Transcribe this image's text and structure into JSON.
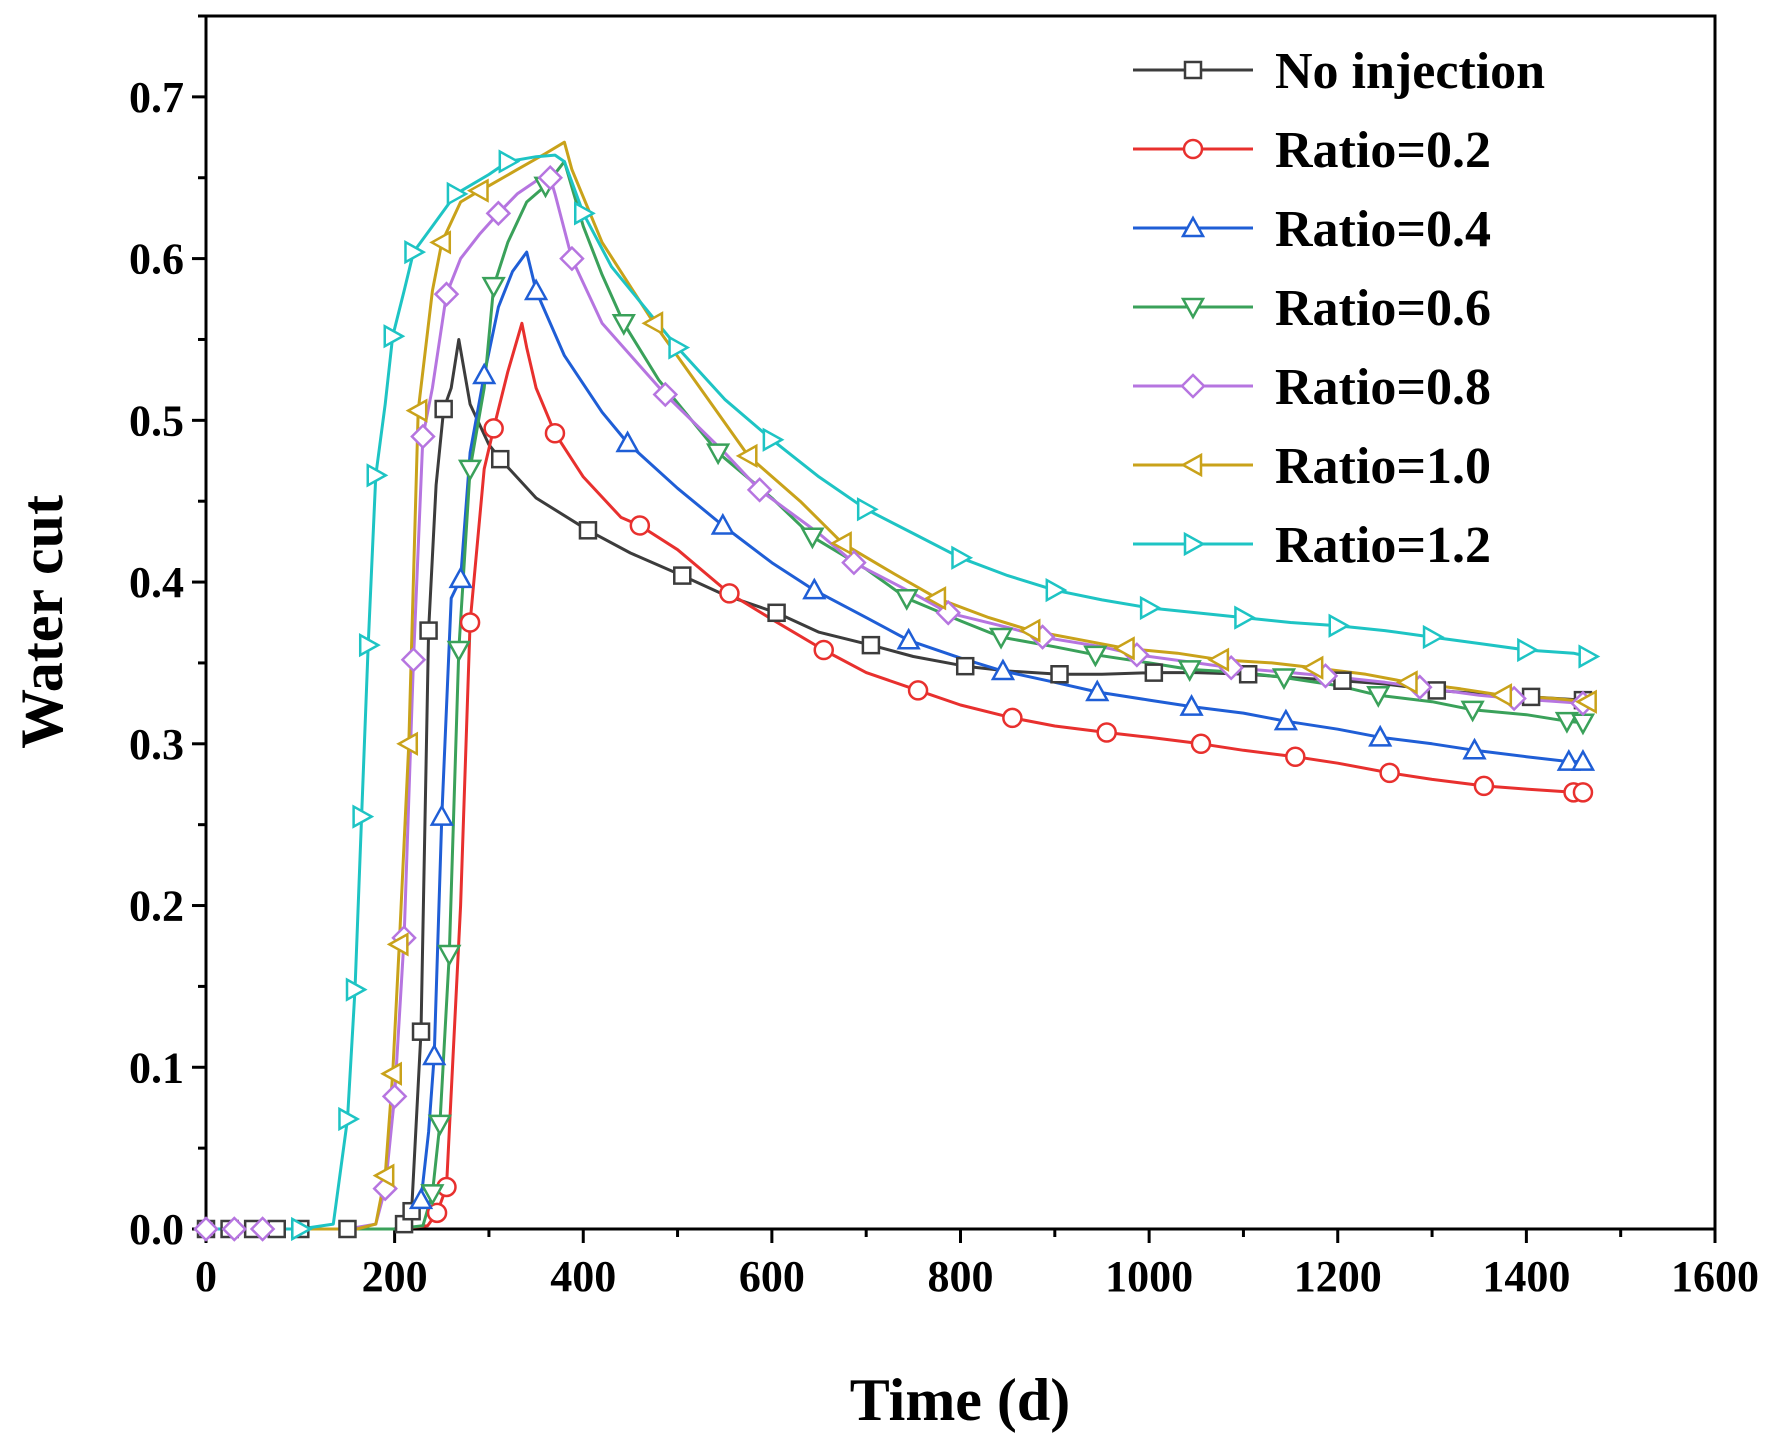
{
  "chart_data": {
    "type": "line",
    "title": "",
    "xlabel": "Time (d)",
    "ylabel": "Water cut",
    "xlim": [
      0,
      1600
    ],
    "ylim": [
      0,
      0.75
    ],
    "xticks": [
      0,
      200,
      400,
      600,
      800,
      1000,
      1200,
      1400,
      1600
    ],
    "yticks": [
      0.0,
      0.1,
      0.2,
      0.3,
      0.4,
      0.5,
      0.6,
      0.7
    ],
    "xtick_labels": [
      "0",
      "200",
      "400",
      "600",
      "800",
      "1000",
      "1200",
      "1400",
      "1600"
    ],
    "ytick_labels": [
      "0.0",
      "0.1",
      "0.2",
      "0.3",
      "0.4",
      "0.5",
      "0.6",
      "0.7"
    ],
    "legend_position": "top-right",
    "grid": false,
    "series": [
      {
        "name": "No injection",
        "color": "#3c3c3c",
        "marker": "square",
        "x": [
          0,
          25,
          50,
          75,
          100,
          150,
          200,
          210,
          218,
          228,
          236,
          244,
          252,
          260,
          268,
          280,
          300,
          312,
          350,
          405,
          450,
          505,
          550,
          605,
          650,
          705,
          750,
          805,
          850,
          905,
          950,
          1005,
          1050,
          1105,
          1150,
          1205,
          1250,
          1305,
          1350,
          1405,
          1460
        ],
        "y": [
          0,
          0,
          0,
          0,
          0,
          0,
          0,
          0.003,
          0.011,
          0.122,
          0.37,
          0.46,
          0.507,
          0.52,
          0.55,
          0.51,
          0.485,
          0.476,
          0.452,
          0.432,
          0.418,
          0.404,
          0.392,
          0.381,
          0.369,
          0.361,
          0.354,
          0.348,
          0.345,
          0.343,
          0.343,
          0.344,
          0.344,
          0.343,
          0.341,
          0.339,
          0.337,
          0.333,
          0.331,
          0.329,
          0.327
        ],
        "markers": [
          0,
          25,
          50,
          75,
          100,
          150,
          210,
          218,
          228,
          236,
          252,
          312,
          405,
          505,
          605,
          705,
          805,
          905,
          1005,
          1105,
          1205,
          1305,
          1405,
          1460
        ]
      },
      {
        "name": "Ratio=0.2",
        "color": "#e8302e",
        "marker": "circle",
        "x": [
          0,
          100,
          200,
          235,
          245,
          255,
          270,
          280,
          295,
          305,
          320,
          335,
          340,
          350,
          370,
          400,
          440,
          460,
          500,
          555,
          600,
          655,
          700,
          755,
          800,
          855,
          900,
          955,
          1000,
          1055,
          1100,
          1155,
          1200,
          1255,
          1300,
          1355,
          1400,
          1450,
          1460
        ],
        "y": [
          0,
          0,
          0,
          0.002,
          0.01,
          0.026,
          0.2,
          0.375,
          0.47,
          0.495,
          0.53,
          0.56,
          0.545,
          0.52,
          0.492,
          0.465,
          0.44,
          0.435,
          0.42,
          0.393,
          0.377,
          0.358,
          0.344,
          0.333,
          0.324,
          0.316,
          0.311,
          0.307,
          0.304,
          0.3,
          0.296,
          0.292,
          0.288,
          0.282,
          0.278,
          0.274,
          0.272,
          0.27,
          0.27
        ],
        "markers": [
          245,
          255,
          280,
          305,
          370,
          460,
          555,
          655,
          755,
          855,
          955,
          1055,
          1155,
          1255,
          1355,
          1450,
          1460
        ]
      },
      {
        "name": "Ratio=0.4",
        "color": "#1f5ed6",
        "marker": "triangle-up",
        "x": [
          0,
          100,
          200,
          215,
          228,
          236,
          242,
          250,
          260,
          270,
          280,
          295,
          310,
          325,
          340,
          350,
          380,
          420,
          447,
          500,
          548,
          600,
          645,
          700,
          745,
          800,
          845,
          900,
          945,
          1000,
          1045,
          1100,
          1145,
          1200,
          1245,
          1300,
          1345,
          1400,
          1445,
          1460
        ],
        "y": [
          0,
          0,
          0,
          0.003,
          0.018,
          0.06,
          0.107,
          0.255,
          0.39,
          0.402,
          0.48,
          0.528,
          0.57,
          0.592,
          0.604,
          0.58,
          0.54,
          0.505,
          0.486,
          0.458,
          0.435,
          0.412,
          0.395,
          0.378,
          0.364,
          0.353,
          0.345,
          0.338,
          0.332,
          0.327,
          0.323,
          0.319,
          0.314,
          0.309,
          0.304,
          0.3,
          0.296,
          0.292,
          0.289,
          0.289
        ],
        "markers": [
          228,
          242,
          250,
          270,
          295,
          350,
          447,
          548,
          645,
          745,
          845,
          945,
          1045,
          1145,
          1245,
          1345,
          1445,
          1460
        ]
      },
      {
        "name": "Ratio=0.6",
        "color": "#3aa15a",
        "marker": "triangle-down",
        "x": [
          0,
          100,
          200,
          230,
          240,
          248,
          258,
          268,
          280,
          295,
          305,
          320,
          340,
          360,
          380,
          400,
          420,
          443,
          480,
          543,
          600,
          643,
          700,
          743,
          800,
          843,
          900,
          943,
          1000,
          1043,
          1100,
          1143,
          1200,
          1243,
          1300,
          1343,
          1400,
          1443,
          1460
        ],
        "y": [
          0,
          0,
          0,
          0.002,
          0.022,
          0.065,
          0.17,
          0.358,
          0.47,
          0.52,
          0.583,
          0.61,
          0.635,
          0.645,
          0.66,
          0.62,
          0.59,
          0.56,
          0.525,
          0.48,
          0.452,
          0.428,
          0.408,
          0.39,
          0.376,
          0.366,
          0.36,
          0.355,
          0.35,
          0.346,
          0.344,
          0.341,
          0.336,
          0.33,
          0.326,
          0.321,
          0.318,
          0.314,
          0.313
        ],
        "markers": [
          240,
          248,
          258,
          268,
          280,
          305,
          360,
          443,
          543,
          643,
          743,
          843,
          943,
          1043,
          1143,
          1243,
          1343,
          1443,
          1460
        ]
      },
      {
        "name": "Ratio=0.8",
        "color": "#b675e0",
        "marker": "diamond",
        "x": [
          0,
          30,
          60,
          100,
          150,
          180,
          190,
          200,
          210,
          220,
          230,
          240,
          255,
          270,
          290,
          310,
          330,
          350,
          365,
          370,
          388,
          420,
          487,
          550,
          587,
          650,
          687,
          750,
          787,
          850,
          887,
          950,
          987,
          1050,
          1087,
          1150,
          1187,
          1250,
          1287,
          1350,
          1387,
          1460
        ],
        "y": [
          0,
          0,
          0,
          0,
          0,
          0.003,
          0.025,
          0.082,
          0.18,
          0.352,
          0.49,
          0.52,
          0.578,
          0.6,
          0.615,
          0.628,
          0.64,
          0.648,
          0.65,
          0.64,
          0.6,
          0.56,
          0.516,
          0.48,
          0.457,
          0.43,
          0.412,
          0.393,
          0.381,
          0.372,
          0.366,
          0.36,
          0.355,
          0.35,
          0.347,
          0.344,
          0.342,
          0.338,
          0.335,
          0.33,
          0.328,
          0.325
        ],
        "markers": [
          0,
          30,
          60,
          190,
          200,
          210,
          220,
          230,
          255,
          310,
          365,
          388,
          487,
          587,
          687,
          787,
          887,
          987,
          1087,
          1187,
          1287,
          1387,
          1460
        ]
      },
      {
        "name": "Ratio=1.0",
        "color": "#c9a21a",
        "marker": "triangle-left",
        "x": [
          0,
          100,
          160,
          180,
          190,
          198,
          205,
          215,
          225,
          240,
          250,
          270,
          290,
          300,
          330,
          360,
          380,
          388,
          420,
          475,
          530,
          575,
          630,
          675,
          730,
          775,
          830,
          875,
          930,
          975,
          1030,
          1075,
          1130,
          1175,
          1230,
          1275,
          1330,
          1375,
          1430,
          1465
        ],
        "y": [
          0,
          0,
          0,
          0.003,
          0.033,
          0.096,
          0.176,
          0.3,
          0.506,
          0.58,
          0.61,
          0.635,
          0.642,
          0.645,
          0.655,
          0.665,
          0.672,
          0.655,
          0.61,
          0.56,
          0.515,
          0.478,
          0.45,
          0.424,
          0.405,
          0.39,
          0.378,
          0.37,
          0.364,
          0.359,
          0.356,
          0.352,
          0.35,
          0.347,
          0.343,
          0.338,
          0.334,
          0.33,
          0.328,
          0.326
        ],
        "markers": [
          190,
          198,
          205,
          215,
          225,
          250,
          290,
          475,
          575,
          675,
          775,
          875,
          975,
          1075,
          1175,
          1275,
          1375,
          1465
        ]
      },
      {
        "name": "Ratio=1.2",
        "color": "#1ec4c4",
        "marker": "triangle-right",
        "x": [
          0,
          50,
          100,
          135,
          150,
          158,
          165,
          172,
          180,
          190,
          198,
          210,
          220,
          240,
          265,
          300,
          320,
          340,
          350,
          370,
          380,
          400,
          430,
          500,
          550,
          600,
          650,
          700,
          750,
          800,
          850,
          900,
          950,
          1000,
          1050,
          1100,
          1150,
          1200,
          1250,
          1300,
          1350,
          1400,
          1450,
          1465
        ],
        "y": [
          0,
          0,
          0,
          0.003,
          0.068,
          0.148,
          0.255,
          0.361,
          0.466,
          0.51,
          0.552,
          0.58,
          0.604,
          0.62,
          0.64,
          0.652,
          0.66,
          0.662,
          0.663,
          0.664,
          0.66,
          0.628,
          0.595,
          0.545,
          0.513,
          0.488,
          0.465,
          0.445,
          0.43,
          0.415,
          0.404,
          0.395,
          0.389,
          0.384,
          0.381,
          0.378,
          0.375,
          0.373,
          0.37,
          0.366,
          0.362,
          0.358,
          0.356,
          0.354
        ],
        "markers": [
          100,
          150,
          158,
          165,
          172,
          180,
          198,
          220,
          265,
          320,
          400,
          500,
          600,
          700,
          800,
          900,
          1000,
          1100,
          1200,
          1300,
          1400,
          1465
        ]
      }
    ]
  }
}
